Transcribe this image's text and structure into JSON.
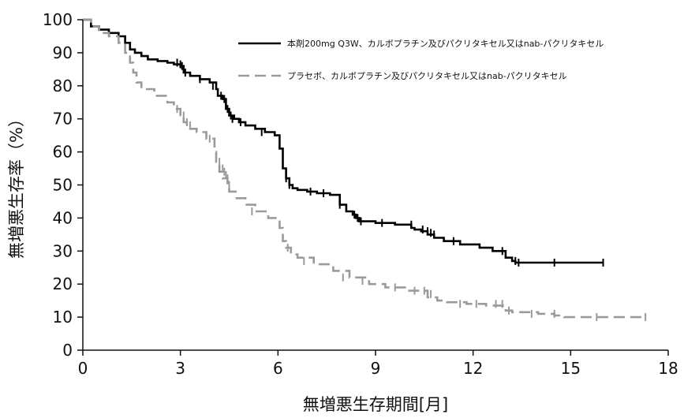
{
  "chart_data": {
    "type": "line",
    "subtype": "kaplan-meier",
    "title": "",
    "xlabel": "無増悪生存期間[月]",
    "ylabel": "無増悪生存率（%）",
    "xlim": [
      0,
      18
    ],
    "ylim": [
      0,
      100
    ],
    "x_ticks": [
      0,
      3,
      6,
      9,
      12,
      15,
      18
    ],
    "y_ticks": [
      0,
      10,
      20,
      30,
      40,
      50,
      60,
      70,
      80,
      90,
      100
    ],
    "grid": false,
    "legend_position": "top-right",
    "series": [
      {
        "name": "本剤200mg Q3W、カルボプラチン及びパクリタキセル又はnab-パクリタキセル",
        "color": "#000000",
        "dash": "solid",
        "x": [
          0,
          0.25,
          0.5,
          0.8,
          1.1,
          1.3,
          1.45,
          1.6,
          1.8,
          2.0,
          2.3,
          2.6,
          2.8,
          3.0,
          3.1,
          3.3,
          3.6,
          3.9,
          4.1,
          4.15,
          4.3,
          4.4,
          4.5,
          4.65,
          4.8,
          5.0,
          5.3,
          5.6,
          5.9,
          6.05,
          6.15,
          6.25,
          6.35,
          6.45,
          6.6,
          6.9,
          7.2,
          7.6,
          7.9,
          8.1,
          8.3,
          8.4,
          8.5,
          9.0,
          9.6,
          10.1,
          10.2,
          10.4,
          10.6,
          10.8,
          11.1,
          11.6,
          12.2,
          12.6,
          13.0,
          13.2,
          13.3,
          16.0
        ],
        "y": [
          100,
          98,
          97,
          96,
          95,
          93,
          91,
          90,
          89,
          88,
          87.5,
          87,
          86.5,
          86,
          84,
          83,
          82,
          81,
          79,
          77,
          76,
          73,
          71,
          70,
          69,
          68,
          67,
          66,
          65,
          61,
          55,
          52,
          50,
          49,
          48.5,
          48,
          47.5,
          47,
          44,
          42,
          41,
          40,
          39,
          38.5,
          38,
          37,
          36.5,
          36,
          35,
          34,
          33,
          32,
          31,
          30,
          28,
          27,
          26.5,
          26.5
        ],
        "censor_x": [
          2.9,
          3.0,
          3.05,
          3.15,
          3.6,
          4.0,
          4.25,
          4.35,
          4.45,
          4.5,
          4.55,
          4.6,
          4.85,
          5.5,
          6.25,
          6.35,
          7.0,
          7.4,
          7.9,
          8.35,
          8.45,
          8.55,
          9.2,
          10.1,
          10.45,
          10.6,
          10.7,
          10.8,
          11.4,
          12.9,
          13.3,
          13.4,
          14.5,
          16.0
        ],
        "censor_y": [
          87,
          86.5,
          86,
          84,
          82,
          80,
          77,
          76,
          73,
          72,
          71,
          70,
          69,
          66,
          52,
          50,
          48,
          47.5,
          44,
          41,
          40,
          39,
          38.5,
          38,
          36.5,
          36,
          35.5,
          35,
          33,
          30,
          27,
          26.5,
          26.5,
          26.5
        ]
      },
      {
        "name": "プラセボ、カルボプラチン及びパクリタキセル又はnab-パクリタキセル",
        "color": "#9a9a9a",
        "dash": "dashed",
        "x": [
          0,
          0.25,
          0.5,
          0.8,
          1.1,
          1.3,
          1.45,
          1.55,
          1.65,
          1.8,
          2.2,
          2.6,
          2.8,
          3.0,
          3.1,
          3.2,
          3.3,
          3.5,
          3.8,
          4.05,
          4.1,
          4.2,
          4.3,
          4.45,
          4.5,
          4.7,
          5.0,
          5.3,
          5.7,
          6.05,
          6.15,
          6.25,
          6.4,
          6.6,
          7.1,
          7.7,
          8.2,
          8.8,
          9.3,
          10.0,
          10.6,
          10.9,
          11.2,
          11.8,
          12.4,
          13.0,
          13.2,
          14.0,
          14.5,
          14.8,
          17.3
        ],
        "y": [
          100,
          98,
          96,
          95,
          93,
          90,
          87,
          84,
          81,
          79,
          77,
          75,
          73,
          71,
          69,
          68,
          67,
          66,
          64,
          60,
          57,
          54,
          52,
          50,
          48,
          46,
          44,
          42,
          40,
          37,
          33,
          31,
          29,
          28,
          26,
          24,
          22,
          20,
          19,
          18,
          16,
          15,
          14.5,
          14,
          13.5,
          12,
          11.5,
          11,
          10.5,
          10,
          10
        ],
        "censor_x": [
          2.9,
          3.0,
          3.1,
          3.2,
          3.3,
          3.9,
          4.2,
          4.3,
          4.35,
          4.4,
          4.45,
          4.5,
          5.2,
          6.3,
          6.8,
          8.0,
          8.6,
          9.6,
          10.2,
          10.5,
          10.7,
          11.6,
          12.1,
          12.7,
          12.9,
          13.1,
          13.8,
          14.5,
          15.8,
          17.3
        ],
        "censor_y": [
          73,
          72,
          71,
          69,
          68,
          64,
          57,
          55,
          54,
          53,
          52,
          50,
          42,
          31,
          27,
          22,
          21,
          19,
          18,
          18,
          17,
          14,
          14,
          14,
          14,
          12,
          11,
          11,
          10,
          10
        ]
      }
    ]
  }
}
